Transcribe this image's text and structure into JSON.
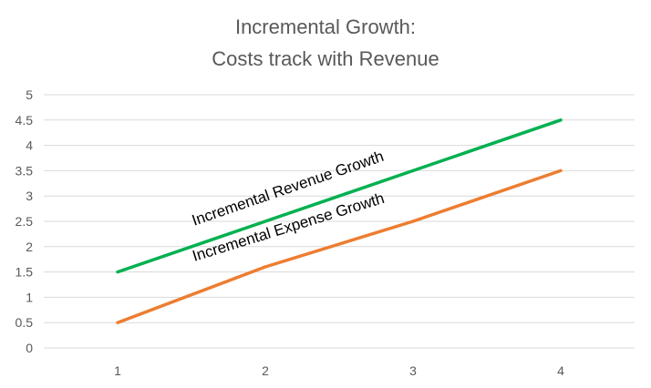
{
  "chart_data": {
    "type": "line",
    "title_lines": [
      "Incremental Growth:",
      "Costs track with Revenue"
    ],
    "x": [
      1,
      2,
      3,
      4
    ],
    "x_tick_labels": [
      "1",
      "2",
      "3",
      "4"
    ],
    "ylim": [
      0,
      5
    ],
    "y_tick_labels": [
      "0",
      "0.5",
      "1",
      "1.5",
      "2",
      "2.5",
      "3",
      "3.5",
      "4",
      "4.5",
      "5"
    ],
    "grid": true,
    "legend": "none",
    "series": [
      {
        "name": "Incremental Revenue Growth",
        "values": [
          1.5,
          2.5,
          3.5,
          4.5
        ],
        "color": "#00b050"
      },
      {
        "name": "Incremental Expense Growth",
        "values": [
          0.5,
          1.6,
          2.5,
          3.5
        ],
        "color": "#ed7d31"
      }
    ]
  }
}
